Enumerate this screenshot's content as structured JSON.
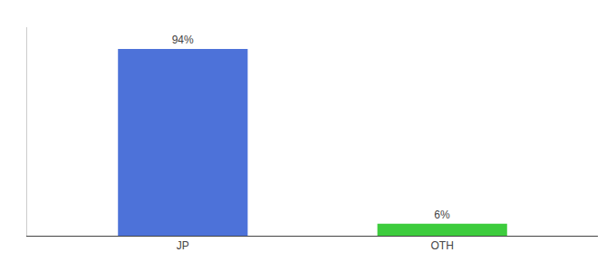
{
  "chart_data": {
    "type": "bar",
    "categories": [
      "JP",
      "OTH"
    ],
    "values": [
      94,
      6
    ],
    "value_labels": [
      "94%",
      "6%"
    ],
    "colors": [
      "#4d72d9",
      "#3dcc3d"
    ],
    "ylim": [
      0,
      105
    ],
    "data_labels": true,
    "tick_labels": "x",
    "grid": false
  }
}
